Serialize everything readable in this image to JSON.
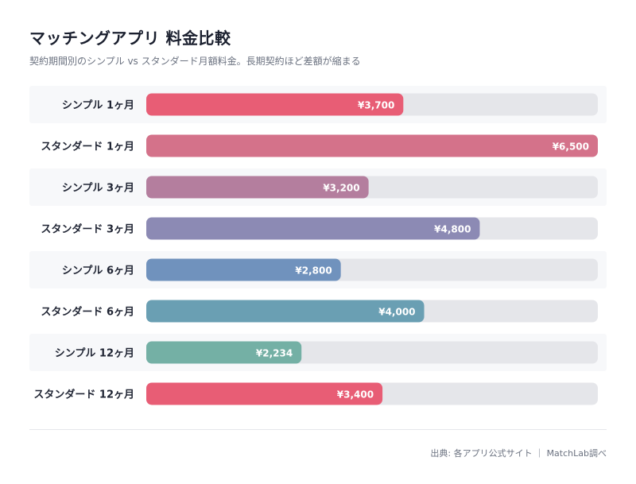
{
  "header": {
    "title": "マッチングアプリ 料金比較",
    "subtitle": "契約期間別のシンプル vs スタンダード月額料金。長期契約ほど差額が縮まる"
  },
  "footer": {
    "source": "出典: 各アプリ公式サイト ｜ MatchLab調べ"
  },
  "chart_data": {
    "type": "bar",
    "orientation": "horizontal",
    "categories": [
      "シンプル 1ヶ月",
      "スタンダード 1ヶ月",
      "シンプル 3ヶ月",
      "スタンダード 3ヶ月",
      "シンプル 6ヶ月",
      "スタンダード 6ヶ月",
      "シンプル 12ヶ月",
      "スタンダード 12ヶ月"
    ],
    "values": [
      3700,
      6500,
      3200,
      4800,
      2800,
      4000,
      2234,
      3400
    ],
    "value_labels": [
      "¥3,700",
      "¥6,500",
      "¥3,200",
      "¥4,800",
      "¥2,800",
      "¥4,000",
      "¥2,234",
      "¥3,400"
    ],
    "colors": [
      "#e85d75",
      "#d4728a",
      "#b47e9e",
      "#8c8ab4",
      "#7092bd",
      "#6a9fb3",
      "#74b0a5",
      "#e85d75"
    ],
    "xlim": [
      0,
      6500
    ],
    "grid": false,
    "legend": "none"
  }
}
